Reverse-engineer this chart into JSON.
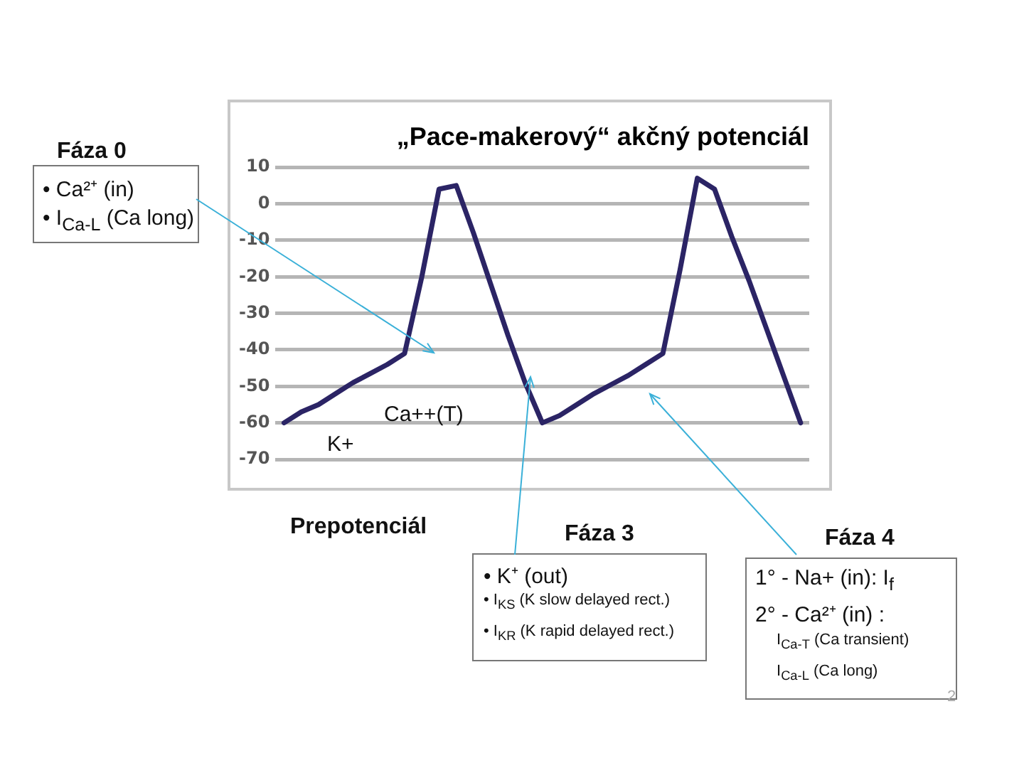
{
  "chart_data": {
    "type": "line",
    "title": "„Pace-makerový“ akčný potenciál",
    "categories": [
      null,
      null,
      null,
      null,
      null,
      null,
      null,
      null,
      null,
      null,
      null,
      null,
      null,
      null,
      null,
      null,
      null,
      null,
      null,
      null,
      null,
      null,
      null,
      null,
      null,
      null,
      null,
      null,
      null,
      null,
      null
    ],
    "series": [
      {
        "color": "#2b2465",
        "values": [
          -60,
          -57,
          -55,
          -52,
          -49,
          -46.5,
          -44,
          -41,
          -20,
          4,
          5,
          -8,
          -22,
          -36,
          -49,
          -60,
          -58,
          -55,
          -52,
          -49.5,
          -47,
          -44,
          -41,
          -18,
          7,
          4,
          -9,
          -21,
          -34,
          -47,
          -60
        ]
      }
    ],
    "ylim": [
      -70,
      10
    ],
    "yticks": [
      -70,
      -60,
      -50,
      -40,
      -30,
      -20,
      -10,
      0,
      10
    ],
    "grid": "y",
    "legend": false,
    "marker": "none",
    "line_style": "solid",
    "tick_labels": "y",
    "annotations": [
      "Fáza 0",
      "• Ca²⁺ (in)",
      "• I$_{Ca-L}$ (Ca long)",
      "Prepotenciál",
      "Fáza 3",
      "• K⁺ (out)",
      "• I$_{KS}$ (K slow delayed rect.)",
      "• I$_{KR}$ (K rapid delayed rect.)",
      "Fáza 4",
      "1° - Na+ (in): I$_{f}$",
      "2° - Ca²⁺ (in) :",
      "I$_{Ca-T}$ (Ca transient)",
      "I$_{Ca-L}$ (Ca long)",
      "Ca++(T)",
      "K+",
      "2"
    ]
  }
}
